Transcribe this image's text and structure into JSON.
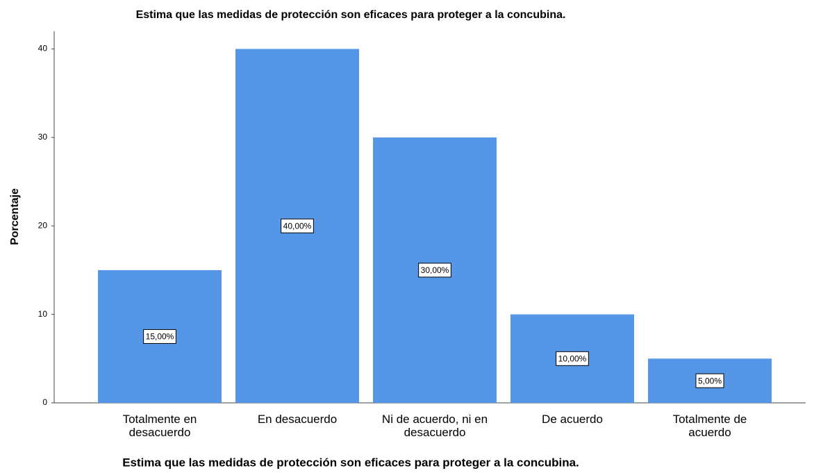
{
  "chart_data": {
    "type": "bar",
    "title": "Estima que las medidas de protección son eficaces para proteger a la concubina.",
    "x_label": "Estima que las medidas de protección son eficaces para proteger a la concubina.",
    "y_label": "Porcentaje",
    "categories": [
      "Totalmente en desacuerdo",
      "En desacuerdo",
      "Ni de acuerdo, ni en desacuerdo",
      "De acuerdo",
      "Totalmente de acuerdo"
    ],
    "values": [
      15,
      40,
      30,
      10,
      5
    ],
    "value_labels": [
      "15,00%",
      "40,00%",
      "30,00%",
      "10,00%",
      "5,00%"
    ],
    "color": "#5597e6",
    "ylim": [
      0,
      42
    ],
    "yticks": [
      0,
      10,
      20,
      30,
      40
    ],
    "grid": false
  }
}
